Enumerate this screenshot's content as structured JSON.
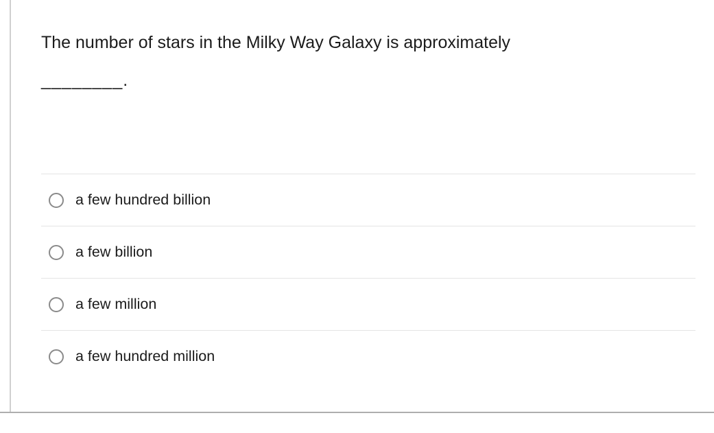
{
  "question": {
    "text": "The number of stars in the Milky Way Galaxy is approximately",
    "blank": "________."
  },
  "options": [
    {
      "label": "a few hundred billion",
      "selected": false
    },
    {
      "label": "a few billion",
      "selected": false
    },
    {
      "label": "a few million",
      "selected": false
    },
    {
      "label": "a few hundred million",
      "selected": false
    }
  ],
  "colors": {
    "text": "#1b1b1b",
    "divider": "#e4e4e4",
    "radio_border": "#8a8a8a",
    "frame_left": "#cfcfcf",
    "frame_bottom": "#aeaeae",
    "background": "#ffffff"
  }
}
